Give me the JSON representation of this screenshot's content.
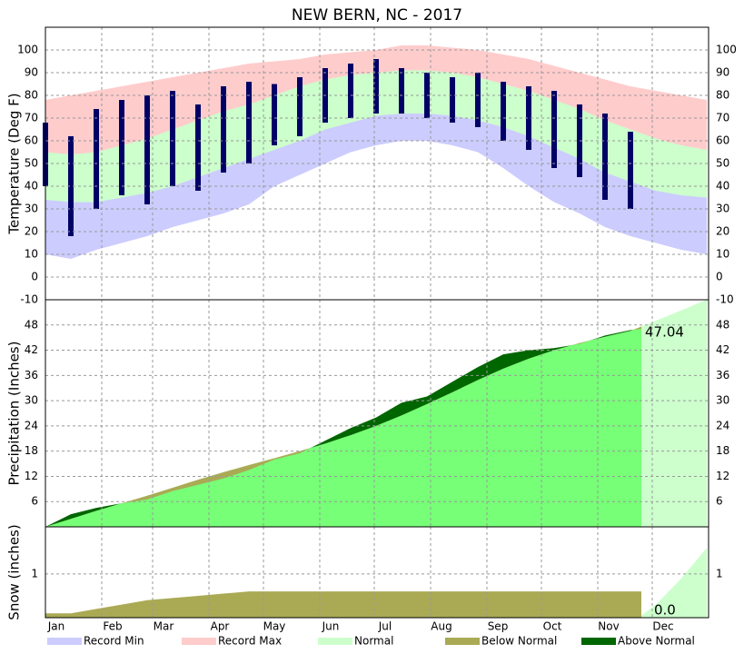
{
  "chart_data": [
    {
      "type": "temperature",
      "title": "NEW BERN, NC - 2017",
      "y_label": "Temperature (Deg F)",
      "ylim": [
        -10,
        110
      ],
      "yticks": [
        -10,
        0,
        10,
        20,
        30,
        40,
        50,
        60,
        70,
        80,
        90,
        100
      ],
      "grid": true,
      "x": [
        0,
        14,
        28,
        42,
        56,
        70,
        84,
        98,
        112,
        126,
        140,
        154,
        168,
        182,
        196,
        210,
        224,
        238,
        252,
        266,
        280,
        294,
        308,
        322,
        336,
        350,
        364
      ],
      "record_max": [
        78,
        80,
        82,
        84,
        86,
        88,
        90,
        92,
        94,
        95,
        96,
        98,
        99,
        100,
        102,
        102,
        101,
        100,
        98,
        96,
        93,
        90,
        87,
        84,
        82,
        80,
        78
      ],
      "normal_high": [
        55,
        54,
        55,
        58,
        61,
        65,
        69,
        73,
        76,
        80,
        84,
        87,
        89,
        90,
        91,
        91,
        90,
        88,
        85,
        82,
        78,
        74,
        69,
        65,
        61,
        58,
        56
      ],
      "normal_low": [
        34,
        33,
        33,
        35,
        37,
        40,
        44,
        48,
        52,
        56,
        60,
        65,
        68,
        71,
        72,
        72,
        71,
        69,
        66,
        62,
        57,
        52,
        46,
        42,
        38,
        36,
        35
      ],
      "record_min": [
        10,
        8,
        12,
        15,
        18,
        22,
        25,
        28,
        32,
        40,
        45,
        50,
        55,
        58,
        60,
        60,
        58,
        55,
        48,
        40,
        33,
        28,
        22,
        18,
        15,
        12,
        10
      ],
      "observed_x": [
        0,
        14,
        28,
        42,
        56,
        70,
        84,
        98,
        112,
        126,
        140,
        154,
        168,
        182,
        196,
        210,
        224,
        238,
        252,
        266,
        280,
        294,
        308,
        322
      ],
      "observed_high": [
        68,
        62,
        74,
        78,
        80,
        82,
        76,
        84,
        86,
        85,
        88,
        92,
        94,
        96,
        92,
        90,
        88,
        90,
        86,
        84,
        82,
        76,
        72,
        64
      ],
      "observed_low": [
        40,
        18,
        30,
        36,
        32,
        40,
        38,
        46,
        50,
        58,
        62,
        68,
        70,
        72,
        72,
        70,
        68,
        66,
        60,
        56,
        48,
        44,
        34,
        30
      ],
      "observed_color": "#000066",
      "legend": [
        {
          "name": "Record Min",
          "color": "#ccccff"
        },
        {
          "name": "Record Max",
          "color": "#ffcccc"
        },
        {
          "name": "Normal",
          "color": "#ccffcc"
        },
        {
          "name": "Below Normal",
          "color": "#aaaa55"
        },
        {
          "name": "Above Normal",
          "color": "#006600"
        }
      ]
    },
    {
      "type": "precipitation",
      "y_label": "Precipitation (Inches)",
      "ylim": [
        0,
        54
      ],
      "yticks": [
        6,
        12,
        18,
        24,
        30,
        36,
        42,
        48
      ],
      "grid": true,
      "normal_x": [
        0,
        14,
        28,
        42,
        56,
        70,
        84,
        98,
        112,
        126,
        140,
        154,
        168,
        182,
        196,
        210,
        224,
        238,
        252,
        266,
        280,
        294,
        308,
        322,
        336,
        350,
        364
      ],
      "normal": [
        0,
        1.9,
        3.8,
        5.6,
        7.4,
        9.3,
        11.2,
        13.0,
        14.7,
        16.3,
        18.0,
        19.8,
        21.8,
        24.0,
        26.5,
        29.2,
        32.0,
        34.9,
        37.6,
        40.0,
        42.0,
        43.7,
        45.2,
        46.6,
        49.0,
        51.5,
        54.0
      ],
      "observed_x": [
        0,
        14,
        28,
        42,
        56,
        70,
        84,
        98,
        112,
        126,
        140,
        154,
        168,
        182,
        196,
        210,
        224,
        238,
        252,
        266,
        280,
        294,
        308,
        322,
        328
      ],
      "observed": [
        0,
        3.0,
        4.5,
        5.6,
        6.5,
        8.5,
        10.0,
        11.5,
        13.5,
        16.0,
        17.5,
        20.5,
        23.5,
        26.0,
        29.5,
        31.0,
        34.5,
        38.0,
        41.0,
        42.0,
        42.5,
        43.5,
        45.5,
        46.8,
        47.04
      ],
      "observed_color": "#77ff77",
      "total_label": "47.04"
    },
    {
      "type": "snow",
      "y_label": "Snow (inches)",
      "ylim": [
        0,
        2.08
      ],
      "yticks": [
        1
      ],
      "grid": true,
      "xlim": [
        0,
        365
      ],
      "xticks": [
        {
          "value": 0,
          "label": "Jan"
        },
        {
          "value": 31,
          "label": "Feb"
        },
        {
          "value": 59,
          "label": "Mar"
        },
        {
          "value": 90,
          "label": "Apr"
        },
        {
          "value": 120,
          "label": "May"
        },
        {
          "value": 151,
          "label": "Jun"
        },
        {
          "value": 181,
          "label": "Jul"
        },
        {
          "value": 212,
          "label": "Aug"
        },
        {
          "value": 243,
          "label": "Sep"
        },
        {
          "value": 273,
          "label": "Oct"
        },
        {
          "value": 304,
          "label": "Nov"
        },
        {
          "value": 334,
          "label": "Dec"
        }
      ],
      "normal_x": [
        0,
        14,
        28,
        42,
        56,
        70,
        84,
        98,
        112,
        126,
        140,
        154,
        168,
        182,
        196,
        210,
        224,
        238,
        252,
        266,
        280,
        294,
        308,
        322,
        328
      ],
      "normal": [
        0.1,
        0.1,
        0.2,
        0.3,
        0.4,
        0.45,
        0.5,
        0.55,
        0.6,
        0.6,
        0.6,
        0.6,
        0.6,
        0.6,
        0.6,
        0.6,
        0.6,
        0.6,
        0.6,
        0.6,
        0.6,
        0.6,
        0.6,
        0.6,
        0.6
      ],
      "season_normal_x": [
        328,
        336,
        350,
        364
      ],
      "season_normal": [
        0.05,
        0.3,
        0.9,
        1.6
      ],
      "observed": 0.0,
      "total_label": "0.0"
    }
  ]
}
